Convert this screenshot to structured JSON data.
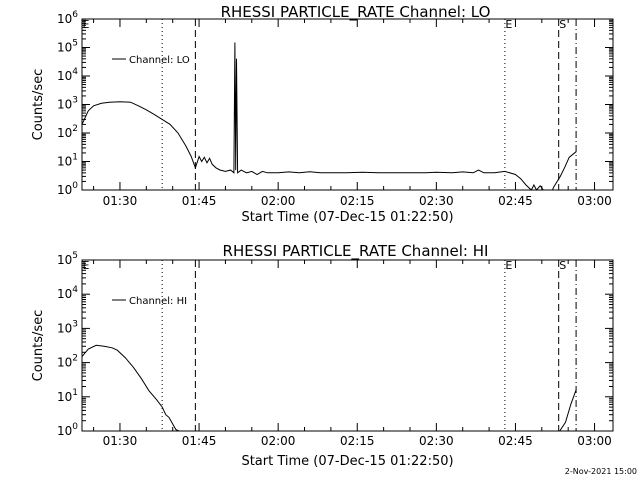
{
  "footer_timestamp": "2-Nov-2021 15:00",
  "chart_data": [
    {
      "type": "line",
      "title": "RHESSI PARTICLE_RATE Channel: LO",
      "xlabel": "Start Time (07-Dec-15 01:22:50)",
      "ylabel": "Counts/sec",
      "yscale": "log",
      "ylim": [
        1,
        1000000
      ],
      "xlim_minutes": [
        82.8,
        183.5
      ],
      "x_tick_labels": [
        "01:30",
        "01:45",
        "02:00",
        "02:15",
        "02:30",
        "02:45",
        "03:00"
      ],
      "x_tick_minutes": [
        90,
        105,
        120,
        135,
        150,
        165,
        180
      ],
      "y_tick_labels": [
        "10^0",
        "10^1",
        "10^2",
        "10^3",
        "10^4",
        "10^5",
        "10^6"
      ],
      "y_tick_values": [
        1,
        10,
        100,
        1000,
        10000,
        100000,
        1000000
      ],
      "legend": {
        "label": "Channel: LO",
        "position": "top-left"
      },
      "markers": [
        {
          "label": "E",
          "minute": 82.8,
          "style": "none"
        },
        {
          "label": "",
          "minute": 98,
          "style": "dotted"
        },
        {
          "label": "",
          "minute": 104.3,
          "style": "dashed"
        },
        {
          "label": "E",
          "minute": 163,
          "style": "dotted"
        },
        {
          "label": "S",
          "minute": 173.2,
          "style": "dashed"
        },
        {
          "label": "",
          "minute": 176.5,
          "style": "dashdot"
        }
      ],
      "series": [
        {
          "name": "Channel: LO",
          "points": [
            [
              82.8,
              200
            ],
            [
              84,
              600
            ],
            [
              85,
              900
            ],
            [
              86.5,
              1100
            ],
            [
              88,
              1200
            ],
            [
              90,
              1250
            ],
            [
              92,
              1200
            ],
            [
              93.5,
              900
            ],
            [
              95,
              650
            ],
            [
              96.5,
              450
            ],
            [
              98,
              300
            ],
            [
              99.5,
              200
            ],
            [
              101,
              100
            ],
            [
              102.5,
              35
            ],
            [
              103.5,
              15
            ],
            [
              104.3,
              6
            ],
            [
              105,
              15
            ],
            [
              105.5,
              10
            ],
            [
              106,
              14
            ],
            [
              106.5,
              9
            ],
            [
              107,
              13
            ],
            [
              107.5,
              8
            ],
            [
              108.2,
              6
            ],
            [
              109,
              5
            ],
            [
              110,
              4.5
            ],
            [
              111,
              5
            ],
            [
              111.6,
              4
            ],
            [
              111.8,
              150000
            ],
            [
              111.95,
              5
            ],
            [
              112.1,
              40000
            ],
            [
              112.3,
              4
            ],
            [
              113,
              5
            ],
            [
              114,
              4
            ],
            [
              115,
              4.5
            ],
            [
              116,
              3.5
            ],
            [
              117,
              4.5
            ],
            [
              118,
              4
            ],
            [
              120,
              4
            ],
            [
              122,
              4.3
            ],
            [
              124,
              4
            ],
            [
              126,
              4.4
            ],
            [
              128,
              4
            ],
            [
              130,
              4
            ],
            [
              133,
              4
            ],
            [
              136,
              4.2
            ],
            [
              139,
              4
            ],
            [
              142,
              4
            ],
            [
              145,
              4
            ],
            [
              148,
              4
            ],
            [
              150,
              4.2
            ],
            [
              153,
              4
            ],
            [
              155,
              4.3
            ],
            [
              157,
              4
            ],
            [
              158,
              5
            ],
            [
              159,
              4
            ],
            [
              161,
              4
            ],
            [
              163,
              4.5
            ],
            [
              165,
              3.5
            ],
            [
              166,
              2.5
            ],
            [
              167,
              1.5
            ],
            [
              168,
              1
            ],
            [
              168.5,
              1.5
            ],
            [
              169,
              1
            ],
            [
              169.7,
              1.4
            ],
            [
              170.3,
              1
            ],
            [
              172,
              1
            ],
            [
              172.3,
              1.3
            ],
            [
              173.5,
              3
            ],
            [
              174.3,
              6
            ],
            [
              175.2,
              14
            ],
            [
              176.5,
              22
            ]
          ]
        }
      ]
    },
    {
      "type": "line",
      "title": "RHESSI PARTICLE_RATE Channel: HI",
      "xlabel": "Start Time (07-Dec-15 01:22:50)",
      "ylabel": "Counts/sec",
      "yscale": "log",
      "ylim": [
        1,
        100000
      ],
      "xlim_minutes": [
        82.8,
        183.5
      ],
      "x_tick_labels": [
        "01:30",
        "01:45",
        "02:00",
        "02:15",
        "02:30",
        "02:45",
        "03:00"
      ],
      "x_tick_minutes": [
        90,
        105,
        120,
        135,
        150,
        165,
        180
      ],
      "y_tick_labels": [
        "10^0",
        "10^1",
        "10^2",
        "10^3",
        "10^4",
        "10^5"
      ],
      "y_tick_values": [
        1,
        10,
        100,
        1000,
        10000,
        100000
      ],
      "legend": {
        "label": "Channel: HI",
        "position": "top-left"
      },
      "markers": [
        {
          "label": "E",
          "minute": 82.8,
          "style": "none"
        },
        {
          "label": "",
          "minute": 98,
          "style": "dotted"
        },
        {
          "label": "",
          "minute": 104.3,
          "style": "dashed"
        },
        {
          "label": "E",
          "minute": 163,
          "style": "dotted"
        },
        {
          "label": "S",
          "minute": 173.2,
          "style": "dashed"
        },
        {
          "label": "",
          "minute": 176.5,
          "style": "dashdot"
        }
      ],
      "series": [
        {
          "name": "Channel: HI",
          "points": [
            [
              82.8,
              150
            ],
            [
              84,
              250
            ],
            [
              85.5,
              320
            ],
            [
              87,
              300
            ],
            [
              88.5,
              270
            ],
            [
              89.5,
              230
            ],
            [
              91,
              140
            ],
            [
              92.5,
              75
            ],
            [
              94,
              35
            ],
            [
              95.5,
              15
            ],
            [
              97,
              8
            ],
            [
              98,
              5
            ],
            [
              98.7,
              3
            ],
            [
              99.3,
              2.5
            ],
            [
              100,
              1.6
            ],
            [
              100.6,
              1.1
            ],
            [
              101.2,
              1
            ]
          ]
        },
        {
          "name": "",
          "points": [
            [
              173.4,
              1
            ],
            [
              174.5,
              1.8
            ],
            [
              175.5,
              6
            ],
            [
              176.5,
              16
            ]
          ]
        }
      ]
    }
  ]
}
